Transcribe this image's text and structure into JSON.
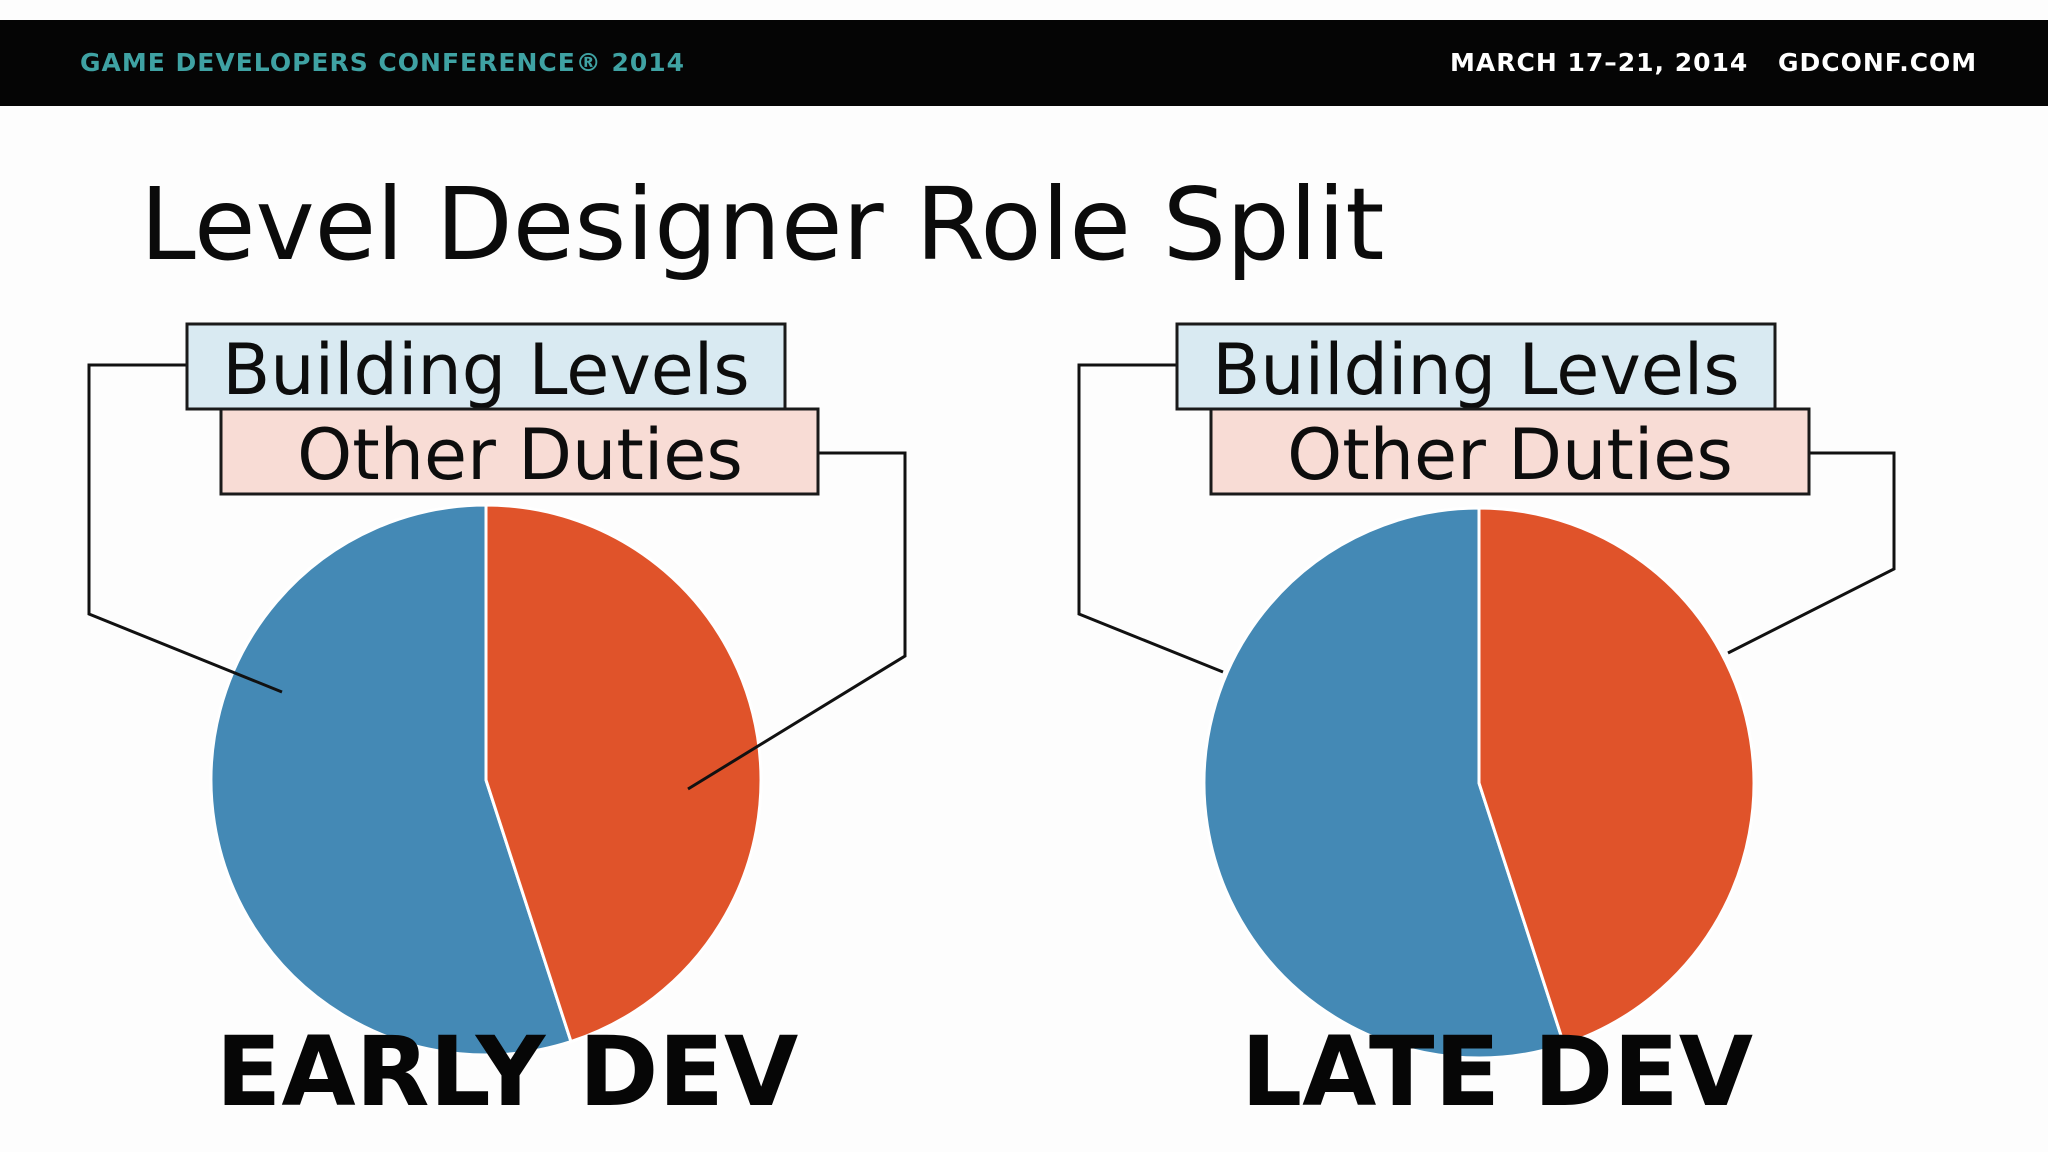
{
  "header": {
    "conference_name": "GAME DEVELOPERS CONFERENCE® 2014",
    "dates": "MARCH 17–21, 2014",
    "website": "GDCONF.COM"
  },
  "title": "Level Designer Role Split",
  "colors": {
    "building_levels": "#4489b5",
    "other_duties": "#e0532a",
    "header_accent": "#3fa2a3"
  },
  "chart_data": [
    {
      "type": "pie",
      "title": "EARLY DEV",
      "legend": [
        "Building Levels",
        "Other Duties"
      ],
      "slices": [
        {
          "label": "Building Levels",
          "value": 55
        },
        {
          "label": "Other Duties",
          "value": 45
        }
      ]
    },
    {
      "type": "pie",
      "title": "LATE DEV",
      "legend": [
        "Building Levels",
        "Other Duties"
      ],
      "slices": [
        {
          "label": "Building Levels",
          "value": 55
        },
        {
          "label": "Other Duties",
          "value": 45
        }
      ]
    }
  ]
}
